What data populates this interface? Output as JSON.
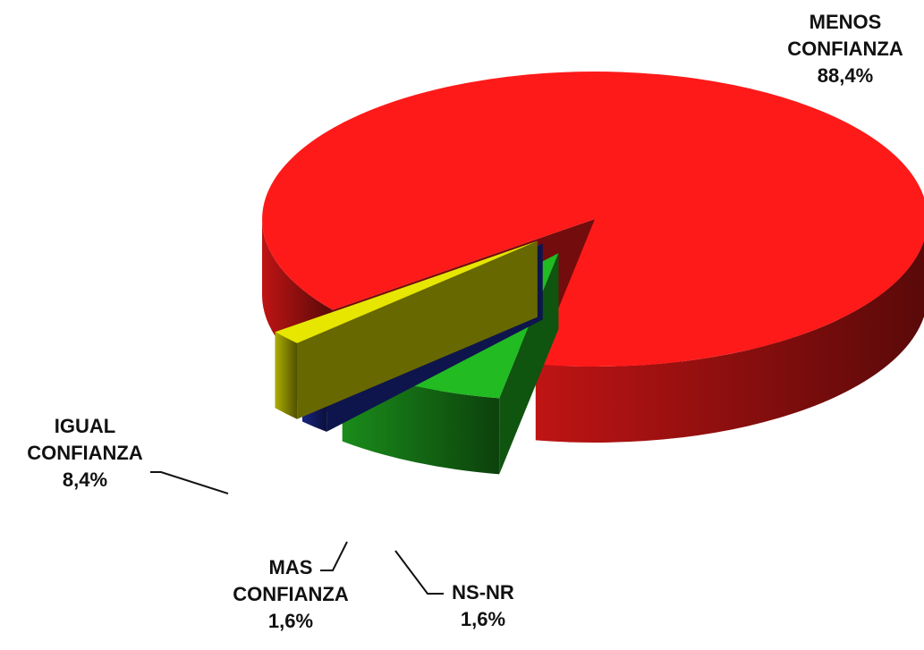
{
  "chart_data": {
    "type": "pie",
    "categories": [
      "MENOS CONFIANZA",
      "IGUAL CONFIANZA",
      "MAS CONFIANZA",
      "NS-NR"
    ],
    "values": [
      88.4,
      8.4,
      1.6,
      1.6
    ],
    "value_labels": [
      "88,4%",
      "8,4%",
      "1,6%",
      "1,6%"
    ],
    "colors": [
      "#ff1a1a",
      "#22bb22",
      "#1f2fa8",
      "#e6e600"
    ]
  }
}
